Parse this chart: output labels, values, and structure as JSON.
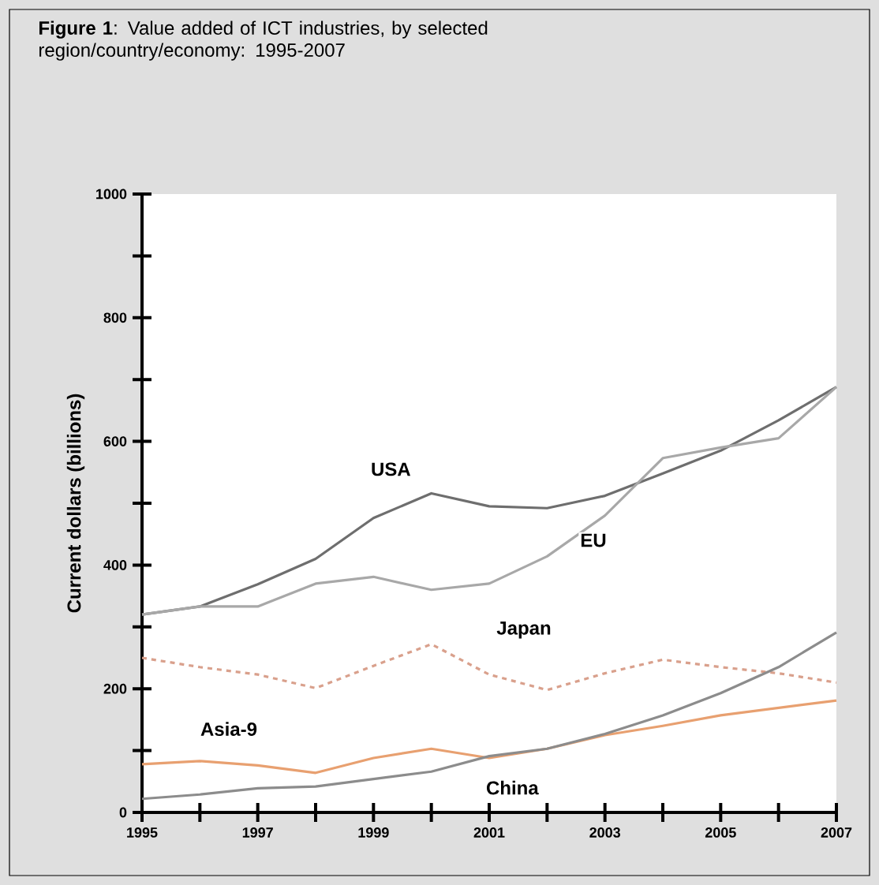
{
  "chart_data": {
    "type": "line",
    "title": "**Figure 1**: Value added of ICT industries, by selected region/country/economy: 1995-2007",
    "ylabel": "Current dollars (billions)",
    "x": [
      1995,
      1996,
      1997,
      1998,
      1999,
      2000,
      2001,
      2002,
      2003,
      2004,
      2005,
      2006,
      2007
    ],
    "series": [
      {
        "name": "USA",
        "color": "#6e6e6e",
        "values": [
          320,
          333,
          369,
          410,
          476,
          516,
          495,
          492,
          512,
          548,
          585,
          634,
          688
        ]
      },
      {
        "name": "EU",
        "color": "#a8a8a8",
        "values": [
          320,
          333,
          333,
          370,
          381,
          360,
          370,
          414,
          480,
          573,
          590,
          605,
          688
        ]
      },
      {
        "name": "Japan",
        "color": "#d9a08c",
        "line_style": "dashed",
        "values": [
          250,
          235,
          223,
          201,
          237,
          272,
          223,
          198,
          225,
          247,
          235,
          225,
          210
        ]
      },
      {
        "name": "Asia-9",
        "color": "#e8a070",
        "values": [
          78,
          83,
          76,
          64,
          88,
          103,
          88,
          103,
          125,
          140,
          157,
          169,
          181
        ]
      },
      {
        "name": "China",
        "color": "#8c8c8c",
        "values": [
          22,
          29,
          39,
          42,
          54,
          66,
          91,
          103,
          127,
          157,
          193,
          235,
          291
        ]
      }
    ],
    "xlim": [
      1995,
      2007
    ],
    "xticks": [
      1995,
      {
        "value": 1996,
        "label": null
      },
      1997,
      {
        "value": 1998,
        "label": null
      },
      1999,
      {
        "value": 2000,
        "label": null
      },
      2001,
      {
        "value": 2002,
        "label": null
      },
      2003,
      {
        "value": 2004,
        "label": null
      },
      2005,
      {
        "value": 2006,
        "label": null
      },
      2007
    ],
    "ylim": [
      0,
      1000
    ],
    "yticks": [
      0,
      {
        "value": 100,
        "label": null
      },
      200,
      {
        "value": 300,
        "label": null
      },
      400,
      {
        "value": 500,
        "label": null
      },
      600,
      {
        "value": 700,
        "label": null
      },
      800,
      {
        "value": 900,
        "label": null
      },
      1000
    ],
    "legend": false,
    "marker": "none",
    "line_style": "solid"
  }
}
